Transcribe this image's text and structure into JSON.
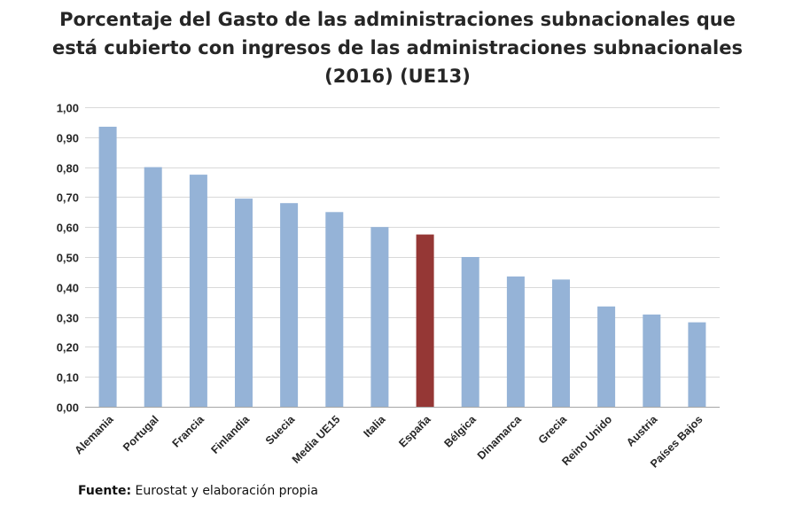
{
  "chart_data": {
    "type": "bar",
    "title_lines": [
      "Porcentaje del Gasto de las administraciones subnacionales que",
      "está cubierto con ingresos de las administraciones subnacionales",
      "(2016) (UE13)"
    ],
    "categories": [
      "Alemania",
      "Portugal",
      "Francia",
      "Finlandia",
      "Suecia",
      "Media UE15",
      "Italia",
      "España",
      "Bélgica",
      "Dinamarca",
      "Grecia",
      "Reino Unido",
      "Austria",
      "Países Bajos"
    ],
    "values": [
      0.935,
      0.8,
      0.775,
      0.695,
      0.68,
      0.65,
      0.6,
      0.575,
      0.5,
      0.435,
      0.425,
      0.335,
      0.308,
      0.282
    ],
    "highlight_index": 7,
    "ylim": [
      0,
      1.0
    ],
    "yticks": [
      0.0,
      0.1,
      0.2,
      0.3,
      0.4,
      0.5,
      0.6,
      0.7,
      0.8,
      0.9,
      1.0
    ],
    "ytick_labels": [
      "0,00",
      "0,10",
      "0,20",
      "0,30",
      "0,40",
      "0,50",
      "0,60",
      "0,70",
      "0,80",
      "0,90",
      "1,00"
    ],
    "grid": true,
    "xlabel": "",
    "ylabel": "",
    "colors": {
      "bar": "#95B3D7",
      "highlight": "#953735",
      "grid": "#D9D9D9",
      "axis": "#A6A6A6",
      "text": "#262626"
    }
  },
  "source": {
    "label": "Fuente:",
    "text": "Eurostat y elaboración propia"
  }
}
